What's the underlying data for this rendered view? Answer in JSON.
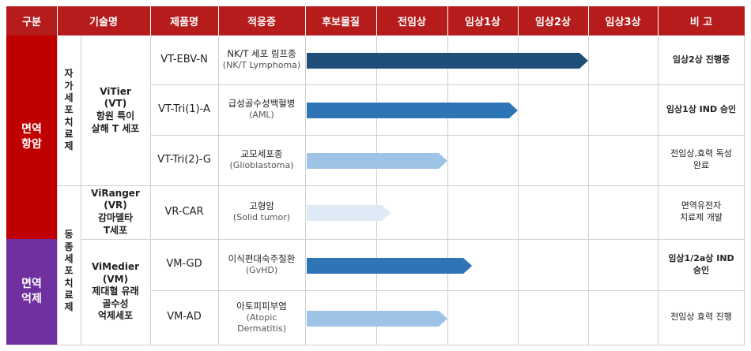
{
  "header": {
    "category": "구분",
    "tech": "기술명",
    "product": "제품명",
    "indication": "적응증",
    "stages": [
      "후보물질",
      "전임상",
      "임상1상",
      "임상2상",
      "임상3상"
    ],
    "note": "비 고"
  },
  "categories": [
    {
      "label": "면역\n항암",
      "color": "#c00000"
    },
    {
      "label": "면역\n억제",
      "color": "#7030a0"
    }
  ],
  "cell_therapy_groups": [
    {
      "chars": [
        "자",
        "가",
        "세",
        "포",
        "치",
        "료",
        "제"
      ]
    },
    {
      "chars": [
        "동",
        "종",
        "세",
        "포",
        "치",
        "료",
        "제"
      ]
    }
  ],
  "technologies": [
    {
      "label": "ViTier\n(VT)\n항원 특이\n살해 T 세포"
    },
    {
      "label": "ViRanger\n(VR)\n감마델타\nT세포"
    },
    {
      "label": "ViMedier\n(VM)\n제대혈 유래\n골수성\n억제세포"
    }
  ],
  "rows": [
    {
      "product": "VT-EBV-N",
      "indication": "NK/T 세포 림프종",
      "indication_en": "(NK/T Lymphoma)",
      "stage_progress": 4.0,
      "bar_color": "#1f4e79",
      "note": "임상2상 진행중",
      "note_bold": true
    },
    {
      "product": "VT-Tri(1)-A",
      "indication": "급성골수성백혈병",
      "indication_en": "(AML)",
      "stage_progress": 3.0,
      "bar_color": "#2e75b6",
      "note": "임상1상 IND 승인",
      "note_bold": true
    },
    {
      "product": "VT-Tri(2)-G",
      "indication": "교모세포종",
      "indication_en": "(Glioblastoma)",
      "stage_progress": 2.0,
      "bar_color": "#9dc3e6",
      "note": "전임상,효력 독성\n완료",
      "note_bold": false
    },
    {
      "product": "VR-CAR",
      "indication": "고형암",
      "indication_en": "(Solid tumor)",
      "stage_progress": 1.2,
      "bar_color": "#deebf7",
      "note": "면역유전자\n치료제 개발",
      "note_bold": false
    },
    {
      "product": "VM-GD",
      "indication": "이식편대숙주질환",
      "indication_en": "(GvHD)",
      "stage_progress": 2.35,
      "bar_color": "#2e75b6",
      "note": "임상1/2a상 IND\n승인",
      "note_bold": true
    },
    {
      "product": "VM-AD",
      "indication": "아토피피부염",
      "indication_en": "(Atopic\nDermatitis)",
      "stage_progress": 2.0,
      "bar_color": "#9dc3e6",
      "note": "전임상 효력 진행",
      "note_bold": false
    }
  ]
}
